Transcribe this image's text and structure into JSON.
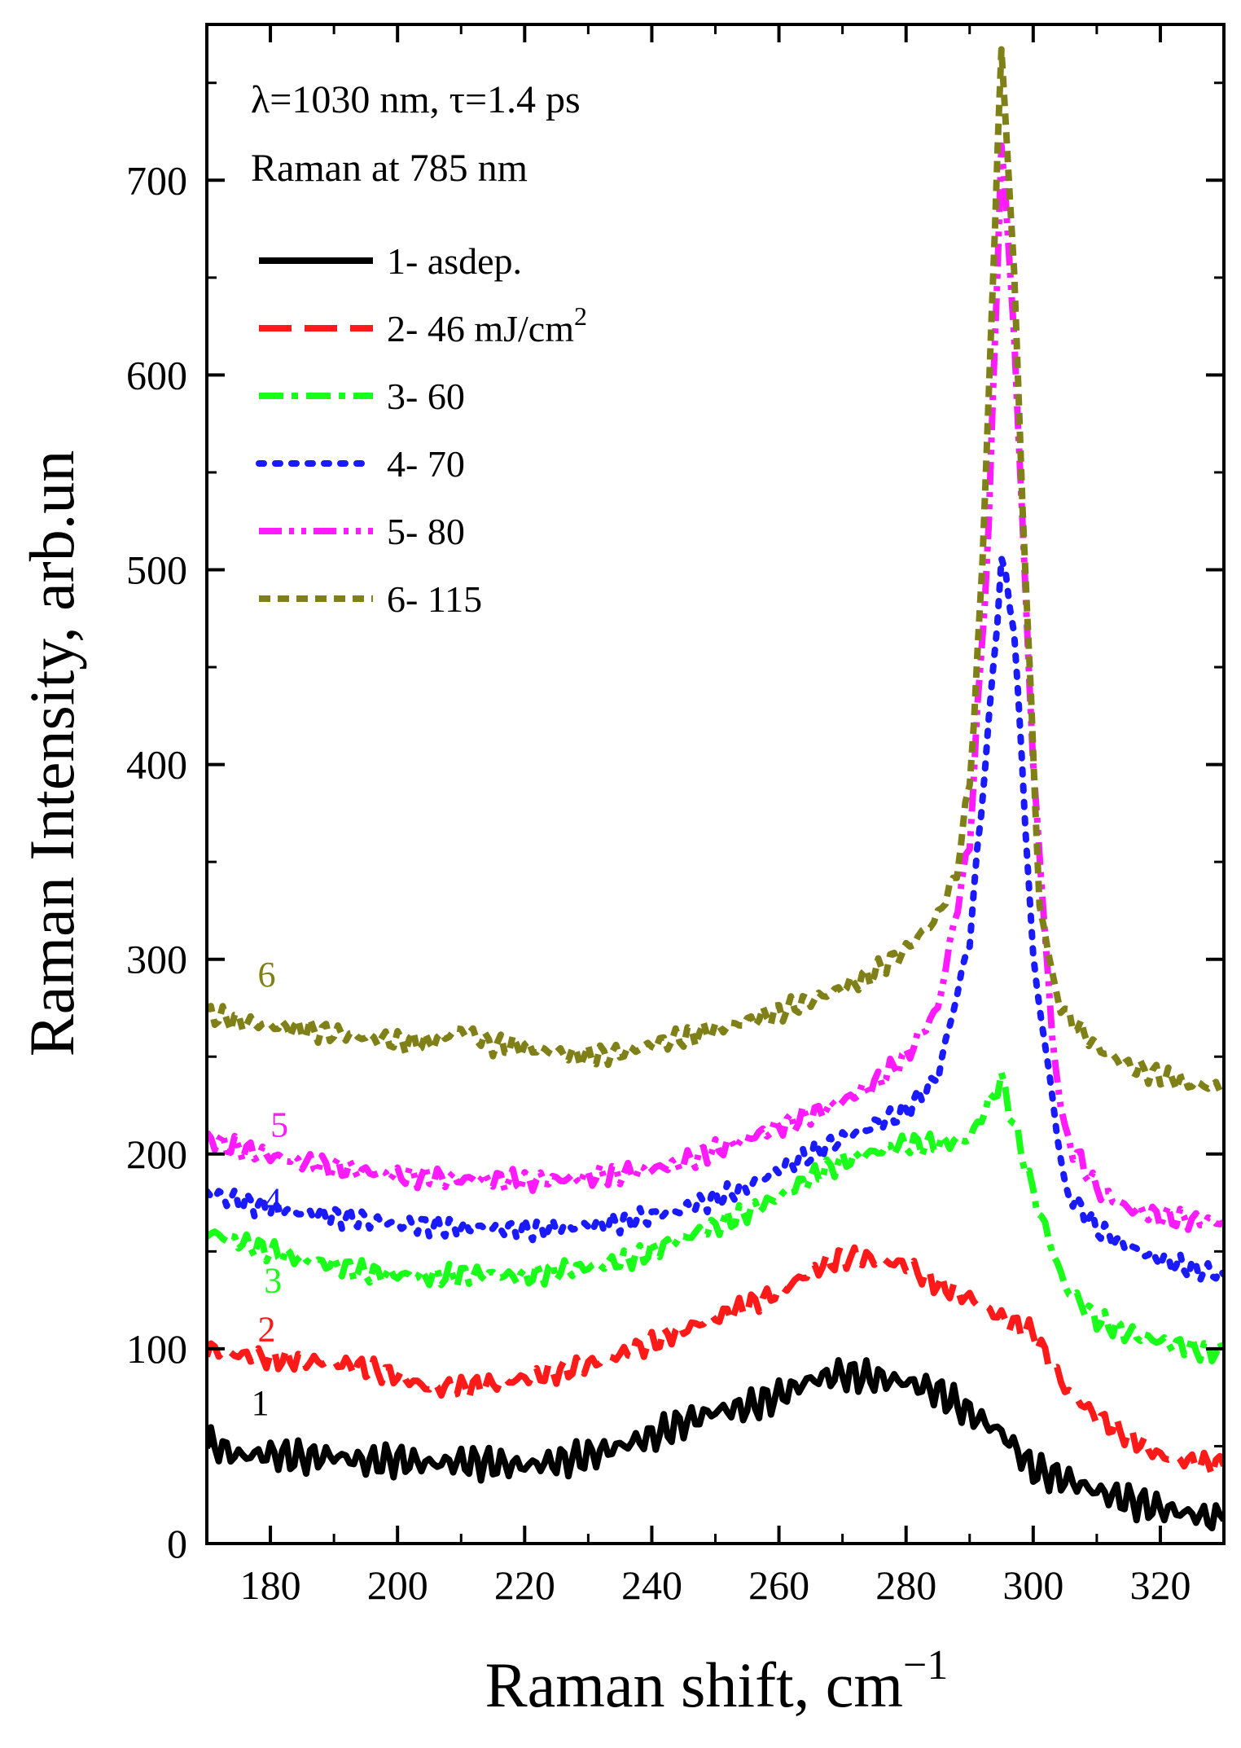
{
  "chart_data": {
    "type": "line",
    "title": "",
    "xlabel": "Raman shift, cm",
    "xlabel_sup": "−1",
    "ylabel": "Raman Intensity, arb.un",
    "xlim": [
      170,
      330
    ],
    "ylim": [
      0,
      780
    ],
    "x_ticks": [
      180,
      200,
      220,
      240,
      260,
      280,
      300,
      320
    ],
    "y_ticks": [
      0,
      100,
      200,
      300,
      400,
      500,
      600,
      700
    ],
    "x_tick_labels": [
      "180",
      "200",
      "220",
      "240",
      "260",
      "280",
      "300",
      "320"
    ],
    "y_tick_labels": [
      "0",
      "100",
      "200",
      "300",
      "400",
      "500",
      "600",
      "700"
    ],
    "annotations": [
      {
        "text": "λ=1030 nm, τ=1.4 ps"
      },
      {
        "text": "Raman at 785 nm"
      }
    ],
    "legend_position": "top-left",
    "series": [
      {
        "id": "1",
        "name": "1- asdep.",
        "color": "#000000",
        "dash": "solid",
        "curve_label": "1",
        "label_at": [
          177,
          66
        ],
        "points": [
          [
            170,
            52
          ],
          [
            175,
            45
          ],
          [
            180,
            46
          ],
          [
            185,
            44
          ],
          [
            190,
            45
          ],
          [
            195,
            42
          ],
          [
            200,
            43
          ],
          [
            205,
            41
          ],
          [
            210,
            42
          ],
          [
            215,
            41
          ],
          [
            220,
            40
          ],
          [
            225,
            42
          ],
          [
            230,
            45
          ],
          [
            235,
            50
          ],
          [
            240,
            55
          ],
          [
            245,
            62
          ],
          [
            250,
            68
          ],
          [
            255,
            70
          ],
          [
            260,
            76
          ],
          [
            265,
            84
          ],
          [
            270,
            87
          ],
          [
            275,
            85
          ],
          [
            280,
            83
          ],
          [
            285,
            78
          ],
          [
            290,
            67
          ],
          [
            295,
            57
          ],
          [
            300,
            38
          ],
          [
            305,
            33
          ],
          [
            310,
            27
          ],
          [
            315,
            22
          ],
          [
            320,
            18
          ],
          [
            325,
            15
          ],
          [
            330,
            12
          ]
        ]
      },
      {
        "id": "2",
        "name": "2- 46 mJ/cm",
        "name_sup": "2",
        "color": "#ff1a1a",
        "dash": "long-dash",
        "curve_label": "2",
        "label_at": [
          178,
          104
        ],
        "points": [
          [
            170,
            100
          ],
          [
            175,
            97
          ],
          [
            180,
            95
          ],
          [
            185,
            94
          ],
          [
            190,
            93
          ],
          [
            195,
            90
          ],
          [
            200,
            86
          ],
          [
            205,
            80
          ],
          [
            210,
            80
          ],
          [
            215,
            82
          ],
          [
            220,
            85
          ],
          [
            225,
            88
          ],
          [
            230,
            92
          ],
          [
            235,
            97
          ],
          [
            240,
            103
          ],
          [
            245,
            110
          ],
          [
            250,
            116
          ],
          [
            255,
            122
          ],
          [
            260,
            129
          ],
          [
            265,
            140
          ],
          [
            270,
            147
          ],
          [
            275,
            146
          ],
          [
            280,
            143
          ],
          [
            285,
            133
          ],
          [
            290,
            126
          ],
          [
            295,
            116
          ],
          [
            300,
            108
          ],
          [
            305,
            80
          ],
          [
            310,
            65
          ],
          [
            315,
            55
          ],
          [
            320,
            45
          ],
          [
            325,
            42
          ],
          [
            330,
            40
          ]
        ]
      },
      {
        "id": "3",
        "name": "3- 60",
        "color": "#1aff1a",
        "dash": "dash-dot",
        "curve_label": "3",
        "label_at": [
          179,
          129
        ],
        "points": [
          [
            170,
            160
          ],
          [
            175,
            155
          ],
          [
            180,
            150
          ],
          [
            185,
            146
          ],
          [
            190,
            143
          ],
          [
            195,
            139
          ],
          [
            200,
            138
          ],
          [
            205,
            137
          ],
          [
            210,
            138
          ],
          [
            215,
            138
          ],
          [
            220,
            137
          ],
          [
            225,
            140
          ],
          [
            230,
            142
          ],
          [
            235,
            145
          ],
          [
            240,
            150
          ],
          [
            245,
            157
          ],
          [
            250,
            163
          ],
          [
            255,
            170
          ],
          [
            260,
            178
          ],
          [
            265,
            188
          ],
          [
            270,
            196
          ],
          [
            275,
            201
          ],
          [
            280,
            205
          ],
          [
            285,
            205
          ],
          [
            290,
            208
          ],
          [
            295,
            238
          ],
          [
            300,
            180
          ],
          [
            305,
            132
          ],
          [
            310,
            115
          ],
          [
            315,
            108
          ],
          [
            320,
            104
          ],
          [
            325,
            100
          ],
          [
            330,
            98
          ]
        ]
      },
      {
        "id": "4",
        "name": "4- 70",
        "color": "#1a1aff",
        "dash": "dot",
        "curve_label": "4",
        "label_at": [
          179,
          170
        ],
        "points": [
          [
            170,
            180
          ],
          [
            175,
            176
          ],
          [
            180,
            172
          ],
          [
            185,
            170
          ],
          [
            190,
            168
          ],
          [
            195,
            166
          ],
          [
            200,
            164
          ],
          [
            205,
            163
          ],
          [
            210,
            162
          ],
          [
            215,
            162
          ],
          [
            220,
            161
          ],
          [
            225,
            162
          ],
          [
            230,
            163
          ],
          [
            235,
            165
          ],
          [
            240,
            168
          ],
          [
            245,
            172
          ],
          [
            250,
            177
          ],
          [
            255,
            183
          ],
          [
            260,
            192
          ],
          [
            265,
            200
          ],
          [
            270,
            208
          ],
          [
            275,
            215
          ],
          [
            280,
            222
          ],
          [
            285,
            240
          ],
          [
            290,
            310
          ],
          [
            293,
            420
          ],
          [
            295,
            505
          ],
          [
            297,
            470
          ],
          [
            300,
            300
          ],
          [
            305,
            182
          ],
          [
            310,
            162
          ],
          [
            315,
            152
          ],
          [
            320,
            146
          ],
          [
            325,
            141
          ],
          [
            330,
            138
          ]
        ]
      },
      {
        "id": "5",
        "name": "5- 80",
        "color": "#ff1aff",
        "dash": "dash-dot-dot",
        "curve_label": "5",
        "label_at": [
          180,
          209
        ],
        "points": [
          [
            170,
            208
          ],
          [
            175,
            203
          ],
          [
            180,
            199
          ],
          [
            185,
            196
          ],
          [
            190,
            193
          ],
          [
            195,
            191
          ],
          [
            200,
            189
          ],
          [
            205,
            188
          ],
          [
            210,
            187
          ],
          [
            215,
            187
          ],
          [
            220,
            186
          ],
          [
            225,
            187
          ],
          [
            230,
            188
          ],
          [
            235,
            190
          ],
          [
            240,
            192
          ],
          [
            245,
            196
          ],
          [
            250,
            202
          ],
          [
            255,
            208
          ],
          [
            260,
            214
          ],
          [
            265,
            220
          ],
          [
            270,
            227
          ],
          [
            275,
            236
          ],
          [
            280,
            250
          ],
          [
            285,
            275
          ],
          [
            290,
            360
          ],
          [
            293,
            520
          ],
          [
            295,
            720
          ],
          [
            297,
            620
          ],
          [
            300,
            400
          ],
          [
            303,
            260
          ],
          [
            305,
            210
          ],
          [
            310,
            182
          ],
          [
            315,
            172
          ],
          [
            320,
            168
          ],
          [
            325,
            166
          ],
          [
            330,
            165
          ]
        ]
      },
      {
        "id": "6",
        "name": "6- 115",
        "color": "#808018",
        "dash": "short-dash",
        "curve_label": "6",
        "label_at": [
          178,
          286
        ],
        "points": [
          [
            170,
            272
          ],
          [
            175,
            268
          ],
          [
            180,
            266
          ],
          [
            185,
            264
          ],
          [
            190,
            262
          ],
          [
            195,
            260
          ],
          [
            200,
            258
          ],
          [
            205,
            257
          ],
          [
            210,
            264
          ],
          [
            215,
            256
          ],
          [
            220,
            255
          ],
          [
            225,
            252
          ],
          [
            230,
            250
          ],
          [
            235,
            252
          ],
          [
            240,
            256
          ],
          [
            245,
            260
          ],
          [
            250,
            264
          ],
          [
            255,
            268
          ],
          [
            260,
            273
          ],
          [
            265,
            279
          ],
          [
            270,
            285
          ],
          [
            275,
            293
          ],
          [
            280,
            305
          ],
          [
            285,
            322
          ],
          [
            288,
            345
          ],
          [
            290,
            390
          ],
          [
            292,
            500
          ],
          [
            294,
            680
          ],
          [
            295,
            770
          ],
          [
            297,
            650
          ],
          [
            299,
            480
          ],
          [
            301,
            330
          ],
          [
            303,
            290
          ],
          [
            305,
            272
          ],
          [
            310,
            255
          ],
          [
            315,
            245
          ],
          [
            320,
            240
          ],
          [
            325,
            236
          ],
          [
            330,
            234
          ]
        ]
      }
    ]
  }
}
